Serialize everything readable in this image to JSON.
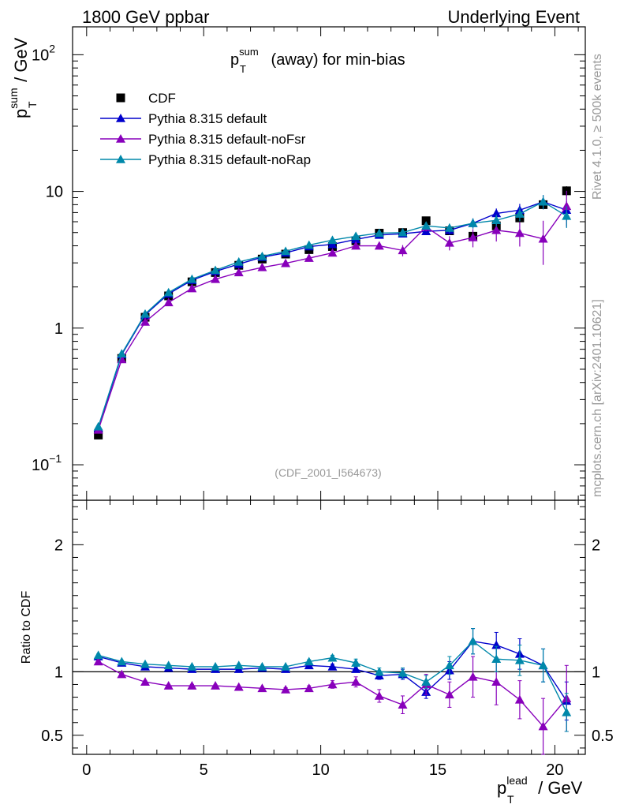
{
  "header": {
    "left": "1800 GeV ppbar",
    "right": "Underlying Event"
  },
  "side_labels": {
    "rivet": "Rivet 4.1.0, ≥ 500k events",
    "mcplots": "mcplots.cern.ch [arXiv:2401.10621]"
  },
  "chart_data": [
    {
      "type": "scatter",
      "title_main": "p",
      "title_sup": "sum",
      "title_sub": "T",
      "title_rest": " (away) for min-bias",
      "analysis_id": "(CDF_2001_I564673)",
      "ylabel_main": "p",
      "ylabel_sup": "sum",
      "ylabel_sub": "T",
      "ylabel_rest": " / GeV",
      "yscale": "log",
      "ylim": [
        0.055,
        160
      ],
      "xlim": [
        -0.6,
        21.3
      ],
      "y_tick_labels": [
        {
          "value": 0.1,
          "base": "10",
          "exp": "−1"
        },
        {
          "value": 1,
          "base": "1",
          "exp": ""
        },
        {
          "value": 10,
          "base": "10",
          "exp": ""
        },
        {
          "value": 100,
          "base": "10",
          "exp": "2"
        }
      ],
      "legend_position": "top-left",
      "x": [
        0.5,
        1.5,
        2.5,
        3.5,
        4.5,
        5.5,
        6.5,
        7.5,
        8.5,
        9.5,
        10.5,
        11.5,
        12.5,
        13.5,
        14.5,
        15.5,
        16.5,
        17.5,
        18.5,
        19.5,
        20.5
      ],
      "series": [
        {
          "name": "CDF",
          "marker": "square",
          "color": "#000000",
          "values": [
            0.165,
            0.6,
            1.2,
            1.72,
            2.18,
            2.55,
            2.88,
            3.2,
            3.48,
            3.75,
            3.95,
            4.35,
            4.95,
            5.0,
            6.1,
            5.15,
            4.7,
            5.6,
            6.4,
            8.0,
            10.1
          ],
          "errors": [
            0.005,
            0.01,
            0.02,
            0.03,
            0.03,
            0.04,
            0.05,
            0.05,
            0.06,
            0.07,
            0.08,
            0.1,
            0.12,
            0.15,
            0.2,
            0.25,
            0.3,
            0.35,
            0.45,
            0.6,
            0.8
          ]
        },
        {
          "name": "Pythia 8.315 default",
          "marker": "triangle",
          "color": "#0000cc",
          "values": [
            0.185,
            0.64,
            1.25,
            1.78,
            2.24,
            2.6,
            2.94,
            3.3,
            3.55,
            3.95,
            4.1,
            4.45,
            4.8,
            4.9,
            5.1,
            5.2,
            5.85,
            6.9,
            7.3,
            8.4,
            7.3
          ],
          "errors": [
            0.003,
            0.005,
            0.01,
            0.015,
            0.02,
            0.02,
            0.03,
            0.04,
            0.05,
            0.06,
            0.08,
            0.1,
            0.15,
            0.2,
            0.3,
            0.4,
            0.5,
            0.6,
            0.8,
            1.0,
            1.2
          ]
        },
        {
          "name": "Pythia 8.315 default-noFsr",
          "marker": "triangle",
          "color": "#8800bb",
          "values": [
            0.18,
            0.59,
            1.11,
            1.54,
            1.95,
            2.28,
            2.55,
            2.78,
            2.98,
            3.25,
            3.55,
            4.0,
            4.0,
            3.7,
            5.5,
            4.2,
            4.6,
            5.2,
            4.95,
            4.5,
            7.8
          ],
          "errors": [
            0.003,
            0.005,
            0.01,
            0.015,
            0.02,
            0.02,
            0.03,
            0.04,
            0.05,
            0.06,
            0.08,
            0.15,
            0.25,
            0.35,
            0.4,
            0.5,
            0.7,
            0.9,
            1.0,
            1.6,
            2.3
          ]
        },
        {
          "name": "Pythia 8.315 default-noRap",
          "marker": "triangle",
          "color": "#0088aa",
          "values": [
            0.19,
            0.65,
            1.27,
            1.82,
            2.28,
            2.65,
            3.05,
            3.35,
            3.65,
            4.05,
            4.4,
            4.7,
            4.95,
            5.0,
            5.6,
            5.4,
            5.85,
            6.15,
            6.85,
            8.4,
            6.6
          ],
          "errors": [
            0.003,
            0.005,
            0.01,
            0.015,
            0.02,
            0.02,
            0.03,
            0.04,
            0.05,
            0.06,
            0.08,
            0.1,
            0.15,
            0.2,
            0.3,
            0.4,
            0.5,
            0.6,
            0.8,
            1.0,
            1.2
          ]
        }
      ]
    },
    {
      "type": "scatter",
      "ylabel": "Ratio to CDF",
      "ylim": [
        0.35,
        2.35
      ],
      "y_tick_labels": [
        "0.5",
        "1",
        "2"
      ],
      "y_tick_values": [
        0.5,
        1,
        2
      ],
      "x_tick_labels": [
        "0",
        "5",
        "10",
        "15",
        "20"
      ],
      "x_tick_values": [
        0,
        5,
        10,
        15,
        20
      ],
      "xlabel_main": "p",
      "xlabel_sup": "lead",
      "xlabel_sub": "T",
      "xlabel_rest": " / GeV",
      "x": [
        0.5,
        1.5,
        2.5,
        3.5,
        4.5,
        5.5,
        6.5,
        7.5,
        8.5,
        9.5,
        10.5,
        11.5,
        12.5,
        13.5,
        14.5,
        15.5,
        16.5,
        17.5,
        18.5,
        19.5,
        20.5
      ],
      "series": [
        {
          "name": "Pythia 8.315 default",
          "color": "#0000cc",
          "values": [
            1.12,
            1.07,
            1.04,
            1.03,
            1.02,
            1.02,
            1.02,
            1.03,
            1.02,
            1.05,
            1.04,
            1.02,
            0.97,
            0.98,
            0.84,
            1.01,
            1.24,
            1.21,
            1.14,
            1.05,
            0.77
          ],
          "errors": [
            0.01,
            0.01,
            0.01,
            0.01,
            0.01,
            0.01,
            0.01,
            0.01,
            0.01,
            0.015,
            0.02,
            0.02,
            0.03,
            0.04,
            0.05,
            0.07,
            0.1,
            0.1,
            0.12,
            0.13,
            0.15
          ]
        },
        {
          "name": "Pythia 8.315 default-noFsr",
          "color": "#8800bb",
          "values": [
            1.08,
            0.98,
            0.92,
            0.89,
            0.89,
            0.89,
            0.88,
            0.87,
            0.86,
            0.87,
            0.9,
            0.92,
            0.81,
            0.74,
            0.9,
            0.82,
            0.96,
            0.92,
            0.78,
            0.57,
            0.79
          ],
          "errors": [
            0.01,
            0.01,
            0.01,
            0.01,
            0.01,
            0.01,
            0.01,
            0.01,
            0.015,
            0.02,
            0.03,
            0.04,
            0.05,
            0.07,
            0.08,
            0.1,
            0.16,
            0.18,
            0.15,
            0.22,
            0.26
          ]
        },
        {
          "name": "Pythia 8.315 default-noRap",
          "color": "#0088aa",
          "values": [
            1.13,
            1.08,
            1.06,
            1.05,
            1.04,
            1.04,
            1.05,
            1.04,
            1.04,
            1.08,
            1.11,
            1.07,
            1.0,
            0.99,
            0.92,
            1.05,
            1.24,
            1.1,
            1.09,
            1.05,
            0.68
          ],
          "errors": [
            0.01,
            0.01,
            0.01,
            0.01,
            0.01,
            0.01,
            0.01,
            0.01,
            0.01,
            0.015,
            0.02,
            0.03,
            0.03,
            0.04,
            0.05,
            0.07,
            0.1,
            0.1,
            0.12,
            0.13,
            0.15
          ]
        }
      ]
    }
  ]
}
